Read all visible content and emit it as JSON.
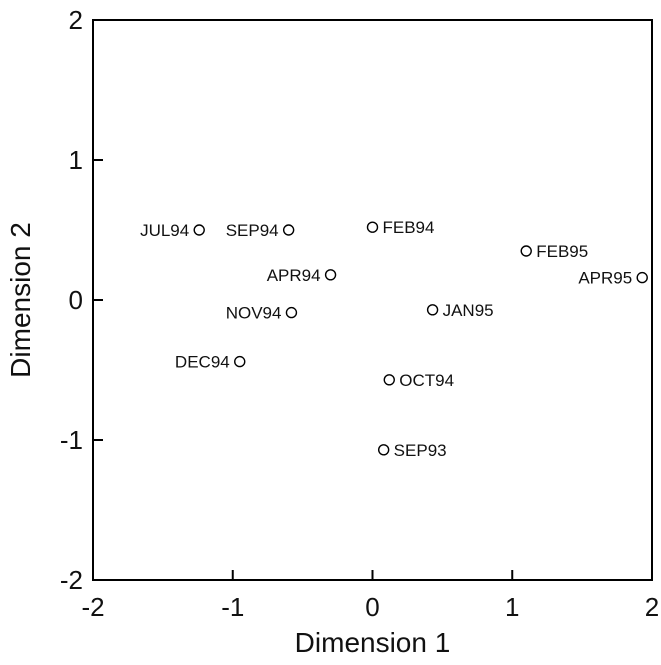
{
  "chart_data": {
    "type": "scatter",
    "title": "",
    "xlabel": "Dimension 1",
    "ylabel": "Dimension 2",
    "xlim": [
      -2,
      2
    ],
    "ylim": [
      -2,
      2
    ],
    "xticks": [
      "-2",
      "-1",
      "0",
      "1",
      "2"
    ],
    "yticks": [
      "-2",
      "-1",
      "0",
      "1",
      "2"
    ],
    "grid": false,
    "marker": "open-circle",
    "colors": {
      "axis": "#000000",
      "marker_stroke": "#000000",
      "marker_fill": "#ffffff",
      "text": "#111111"
    },
    "points": [
      {
        "label": "JUL94",
        "x": -1.24,
        "y": 0.5,
        "label_side": "left"
      },
      {
        "label": "SEP94",
        "x": -0.6,
        "y": 0.5,
        "label_side": "left"
      },
      {
        "label": "FEB94",
        "x": 0.0,
        "y": 0.52,
        "label_side": "right"
      },
      {
        "label": "FEB95",
        "x": 1.1,
        "y": 0.35,
        "label_side": "right"
      },
      {
        "label": "APR95",
        "x": 1.93,
        "y": 0.16,
        "label_side": "left"
      },
      {
        "label": "APR94",
        "x": -0.3,
        "y": 0.18,
        "label_side": "left"
      },
      {
        "label": "NOV94",
        "x": -0.58,
        "y": -0.09,
        "label_side": "left"
      },
      {
        "label": "JAN95",
        "x": 0.43,
        "y": -0.07,
        "label_side": "right"
      },
      {
        "label": "DEC94",
        "x": -0.95,
        "y": -0.44,
        "label_side": "left"
      },
      {
        "label": "OCT94",
        "x": 0.12,
        "y": -0.57,
        "label_side": "right"
      },
      {
        "label": "SEP93",
        "x": 0.08,
        "y": -1.07,
        "label_side": "right"
      }
    ]
  }
}
